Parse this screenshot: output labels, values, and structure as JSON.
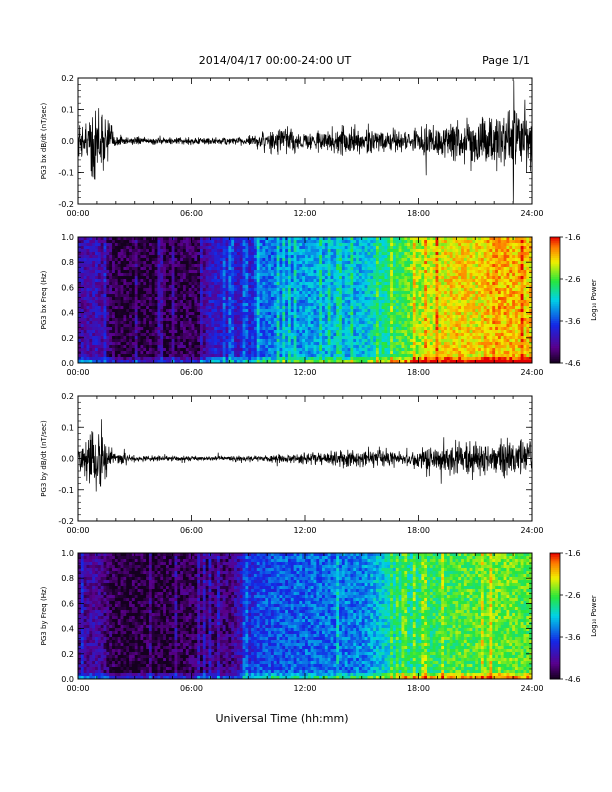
{
  "header": {
    "date_range": "2014/04/17  00:00-24:00 UT",
    "page": "Page 1/1"
  },
  "xaxis": {
    "label": "Universal Time (hh:mm)",
    "ticks": [
      "00:00",
      "06:00",
      "12:00",
      "18:00",
      "24:00"
    ]
  },
  "colorbar": {
    "label": "Log₁₀ Power",
    "ticks": [
      "-1.6",
      "-2.6",
      "-3.6",
      "-4.6"
    ],
    "range": [
      -4.6,
      -1.6
    ]
  },
  "chart_data": [
    {
      "type": "line",
      "panel": "PG3 bx dB/dt",
      "ylabel": "PG3 bx dB/dt (nT/sec)",
      "xlim": [
        "00:00",
        "24:00"
      ],
      "ylim": [
        -0.2,
        0.2
      ],
      "yticks": [
        "0.2",
        "0.1",
        "0.0",
        "-0.1",
        "-0.2"
      ],
      "envelope_x_hours": [
        0,
        0.5,
        1,
        1.3,
        2,
        3,
        5,
        7,
        9,
        10,
        11,
        12,
        13,
        14,
        15,
        16,
        17,
        18,
        19,
        20,
        21,
        22,
        23,
        24
      ],
      "envelope_amplitude": [
        0.05,
        0.08,
        0.2,
        0.1,
        0.02,
        0.012,
        0.012,
        0.012,
        0.015,
        0.035,
        0.05,
        0.03,
        0.04,
        0.045,
        0.05,
        0.04,
        0.035,
        0.045,
        0.06,
        0.07,
        0.08,
        0.09,
        0.1,
        0.11
      ]
    },
    {
      "type": "heatmap",
      "panel": "PG3 bx Freq",
      "ylabel": "PG3 bx Freq (Hz)",
      "xlim": [
        "00:00",
        "24:00"
      ],
      "ylim": [
        0.0,
        1.0
      ],
      "yticks": [
        "1.0",
        "0.8",
        "0.6",
        "0.4",
        "0.2",
        "0.0"
      ],
      "power_x_hours": [
        0,
        1,
        2,
        4,
        6.5,
        7,
        9,
        9.5,
        12,
        15,
        16.5,
        18,
        20,
        21,
        22,
        24
      ],
      "log_power": [
        -4.1,
        -4.0,
        -4.5,
        -4.5,
        -4.4,
        -3.9,
        -3.9,
        -3.5,
        -3.3,
        -3.2,
        -2.8,
        -2.4,
        -2.1,
        -2.2,
        -2.0,
        -2.1
      ]
    },
    {
      "type": "line",
      "panel": "PG3 by dB/dt",
      "ylabel": "PG3 by dB/dt (nT/sec)",
      "xlim": [
        "00:00",
        "24:00"
      ],
      "ylim": [
        -0.2,
        0.2
      ],
      "yticks": [
        "0.2",
        "0.1",
        "0.0",
        "-0.1",
        "-0.2"
      ],
      "envelope_x_hours": [
        0,
        0.5,
        1,
        1.3,
        2,
        3,
        5,
        7,
        9,
        10,
        11,
        12,
        13,
        14,
        15,
        16,
        17,
        18,
        19,
        20,
        21,
        22,
        23,
        24
      ],
      "envelope_amplitude": [
        0.04,
        0.07,
        0.17,
        0.08,
        0.02,
        0.01,
        0.008,
        0.008,
        0.01,
        0.012,
        0.015,
        0.018,
        0.025,
        0.03,
        0.03,
        0.03,
        0.025,
        0.035,
        0.045,
        0.05,
        0.055,
        0.06,
        0.065,
        0.07
      ]
    },
    {
      "type": "heatmap",
      "panel": "PG3 by Freq",
      "ylabel": "PG3 by Freq (Hz)",
      "xlim": [
        "00:00",
        "24:00"
      ],
      "ylim": [
        0.0,
        1.0
      ],
      "yticks": [
        "1.0",
        "0.8",
        "0.6",
        "0.4",
        "0.2",
        "0.0"
      ],
      "power_x_hours": [
        0,
        1,
        2,
        4,
        6.5,
        7,
        8,
        9.5,
        12,
        15,
        16.5,
        18,
        20,
        21,
        22,
        24
      ],
      "log_power": [
        -4.2,
        -4.1,
        -4.5,
        -4.5,
        -4.4,
        -4.3,
        -4.3,
        -3.6,
        -3.5,
        -3.4,
        -3.0,
        -2.8,
        -2.6,
        -2.6,
        -2.5,
        -2.6
      ]
    }
  ]
}
